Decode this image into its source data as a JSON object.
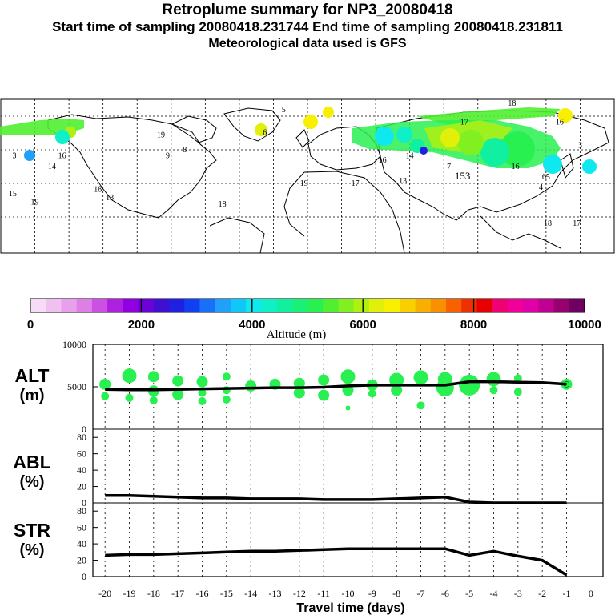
{
  "header": {
    "title": "Retroplume summary for NP3_20080418",
    "sampling": "Start time of sampling 20080418.231744     End time of sampling 20080418.231811",
    "met": "Meteorological data used is GFS"
  },
  "colorbar": {
    "label": "Altitude (m)",
    "tick_labels": [
      "0",
      "2000",
      "4000",
      "6000",
      "8000",
      "10000"
    ],
    "colors": [
      "#f7dcf7",
      "#f0c0f0",
      "#e8a0ec",
      "#dc80e8",
      "#cc50e4",
      "#b020e0",
      "#9000e0",
      "#6e00d8",
      "#4010d0",
      "#2020e0",
      "#1040f0",
      "#1870f8",
      "#20a0f8",
      "#10c8f8",
      "#10e8f0",
      "#10f0c8",
      "#10f0a0",
      "#18f078",
      "#28f050",
      "#50f030",
      "#80f020",
      "#b0f010",
      "#e0f008",
      "#f8f000",
      "#f8d000",
      "#f8b000",
      "#f89000",
      "#f86000",
      "#f03000",
      "#e80000",
      "#f00070",
      "#f00098",
      "#e000a8",
      "#c00090",
      "#980070",
      "#700060"
    ]
  },
  "map": {
    "labels": [
      {
        "text": "3",
        "lon": -172,
        "lat": 50
      },
      {
        "text": "14",
        "lon": -150,
        "lat": 45
      },
      {
        "text": "16",
        "lon": -144,
        "lat": 50
      },
      {
        "text": "15",
        "lon": -173,
        "lat": 32
      },
      {
        "text": "19",
        "lon": -160,
        "lat": 28
      },
      {
        "text": "18",
        "lon": -123,
        "lat": 34
      },
      {
        "text": "13",
        "lon": -116,
        "lat": 30
      },
      {
        "text": "19",
        "lon": -86,
        "lat": 60
      },
      {
        "text": "9",
        "lon": -82,
        "lat": 50
      },
      {
        "text": "8",
        "lon": -72,
        "lat": 53
      },
      {
        "text": "6",
        "lon": -25,
        "lat": 61
      },
      {
        "text": "5",
        "lon": -14,
        "lat": 72
      },
      {
        "text": "18",
        "lon": -50,
        "lat": 27
      },
      {
        "text": "19",
        "lon": -2,
        "lat": 37
      },
      {
        "text": "17",
        "lon": 28,
        "lat": 37
      },
      {
        "text": "16",
        "lon": 44,
        "lat": 48
      },
      {
        "text": "14",
        "lon": 60,
        "lat": 50
      },
      {
        "text": "13",
        "lon": 56,
        "lat": 38
      },
      {
        "text": "7",
        "lon": 83,
        "lat": 45
      },
      {
        "text": "153",
        "lon": 91,
        "lat": 40
      },
      {
        "text": "16",
        "lon": 122,
        "lat": 45
      },
      {
        "text": "65",
        "lon": 140,
        "lat": 40
      },
      {
        "text": "4",
        "lon": 137,
        "lat": 35
      },
      {
        "text": "18",
        "lon": 141,
        "lat": 18
      },
      {
        "text": "17",
        "lon": 158,
        "lat": 18
      },
      {
        "text": "3",
        "lon": 160,
        "lat": 55
      },
      {
        "text": "16",
        "lon": 148,
        "lat": 66
      },
      {
        "text": "18",
        "lon": 120,
        "lat": 75
      },
      {
        "text": "17",
        "lon": 92,
        "lat": 66
      }
    ]
  },
  "panels": {
    "alt_label": [
      "ALT",
      "(m)"
    ],
    "abl_label": [
      "ABL",
      "(%)"
    ],
    "str_label": [
      "STR",
      "(%)"
    ]
  },
  "chart_data": [
    {
      "type": "line",
      "title": "ALT",
      "ylabel": "(m)",
      "xlabel": "Travel time (days)",
      "x": [
        -20,
        -19,
        -18,
        -17,
        -16,
        -15,
        -14,
        -13,
        -12,
        -11,
        -10,
        -9,
        -8,
        -7,
        -6,
        -5,
        -4,
        -3,
        -2,
        -1
      ],
      "y": [
        4700,
        4650,
        4650,
        4700,
        4750,
        4800,
        4850,
        4900,
        4900,
        4950,
        5100,
        5200,
        5200,
        5200,
        5200,
        5600,
        5600,
        5550,
        5500,
        5300
      ],
      "ylim": [
        0,
        10000
      ],
      "yticks": [
        0,
        5000,
        10000
      ],
      "scatter": {
        "x": [
          -20,
          -20,
          -19,
          -19,
          -18,
          -18,
          -18,
          -17,
          -17,
          -16,
          -16,
          -16,
          -15,
          -15,
          -15,
          -14,
          -13,
          -12,
          -12,
          -11,
          -11,
          -10,
          -10,
          -10,
          -9,
          -9,
          -8,
          -8,
          -7,
          -7,
          -6,
          -6,
          -5,
          -4,
          -4,
          -3,
          -3,
          -1
        ],
        "y": [
          5300,
          3900,
          6300,
          3700,
          6200,
          4500,
          3400,
          5700,
          4100,
          5600,
          4300,
          3300,
          6200,
          4600,
          3500,
          5100,
          5300,
          5400,
          4300,
          5800,
          4000,
          6200,
          4600,
          2500,
          5200,
          4200,
          5800,
          4600,
          6100,
          2800,
          5900,
          4900,
          5200,
          5900,
          4600,
          6000,
          4400,
          5300
        ],
        "size": [
          3,
          2,
          4,
          2,
          3,
          3,
          2,
          3,
          3,
          3,
          2,
          2,
          2,
          2,
          2,
          3,
          3,
          3,
          3,
          3,
          3,
          4,
          3,
          1,
          3,
          2,
          4,
          3,
          4,
          2,
          4,
          5,
          6,
          4,
          2,
          2,
          2,
          3
        ]
      }
    },
    {
      "type": "line",
      "title": "ABL",
      "ylabel": "(%)",
      "x": [
        -20,
        -19,
        -18,
        -17,
        -16,
        -15,
        -14,
        -13,
        -12,
        -11,
        -10,
        -9,
        -8,
        -7,
        -6,
        -5,
        -4,
        -3,
        -2,
        -1
      ],
      "y": [
        9,
        9,
        8,
        7,
        6,
        6,
        5,
        5,
        5,
        4,
        4,
        4,
        5,
        6,
        7,
        1,
        0,
        0,
        0,
        0
      ],
      "ylim": [
        0,
        90
      ],
      "yticks": [
        0,
        20,
        40,
        60,
        80
      ]
    },
    {
      "type": "line",
      "title": "STR",
      "ylabel": "(%)",
      "x": [
        -20,
        -19,
        -18,
        -17,
        -16,
        -15,
        -14,
        -13,
        -12,
        -11,
        -10,
        -9,
        -8,
        -7,
        -6,
        -5,
        -4,
        -3,
        -2,
        -1
      ],
      "y": [
        26,
        27,
        27,
        28,
        29,
        30,
        31,
        31,
        32,
        33,
        34,
        34,
        34,
        34,
        34,
        26,
        31,
        25,
        20,
        2
      ],
      "ylim": [
        0,
        90
      ],
      "yticks": [
        0,
        20,
        40,
        60,
        80
      ],
      "xticks": [
        "-20",
        "-19",
        "-18",
        "-17",
        "-16",
        "-15",
        "-14",
        "-13",
        "-12",
        "-11",
        "-10",
        "-9",
        "-8",
        "-7",
        "-6",
        "-5",
        "-4",
        "-3",
        "-2",
        "-1",
        "0"
      ]
    }
  ]
}
